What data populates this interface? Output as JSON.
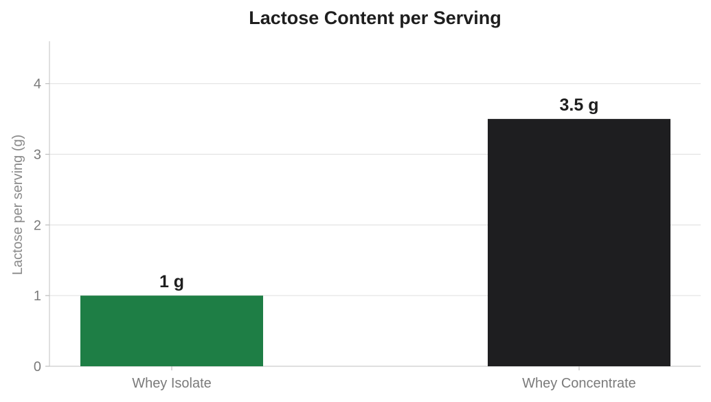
{
  "chart_data": {
    "type": "bar",
    "title": "Lactose Content per Serving",
    "xlabel": "",
    "ylabel": "Lactose per serving (g)",
    "categories": [
      "Whey Isolate",
      "Whey Concentrate"
    ],
    "values": [
      1,
      3.5
    ],
    "data_labels": [
      "1 g",
      "3.5 g"
    ],
    "colors": [
      "#1e7e45",
      "#1e1e20"
    ],
    "ylim": [
      0,
      4.6
    ],
    "yticks": [
      0,
      1,
      2,
      3,
      4
    ],
    "grid": true,
    "legend": "none"
  }
}
